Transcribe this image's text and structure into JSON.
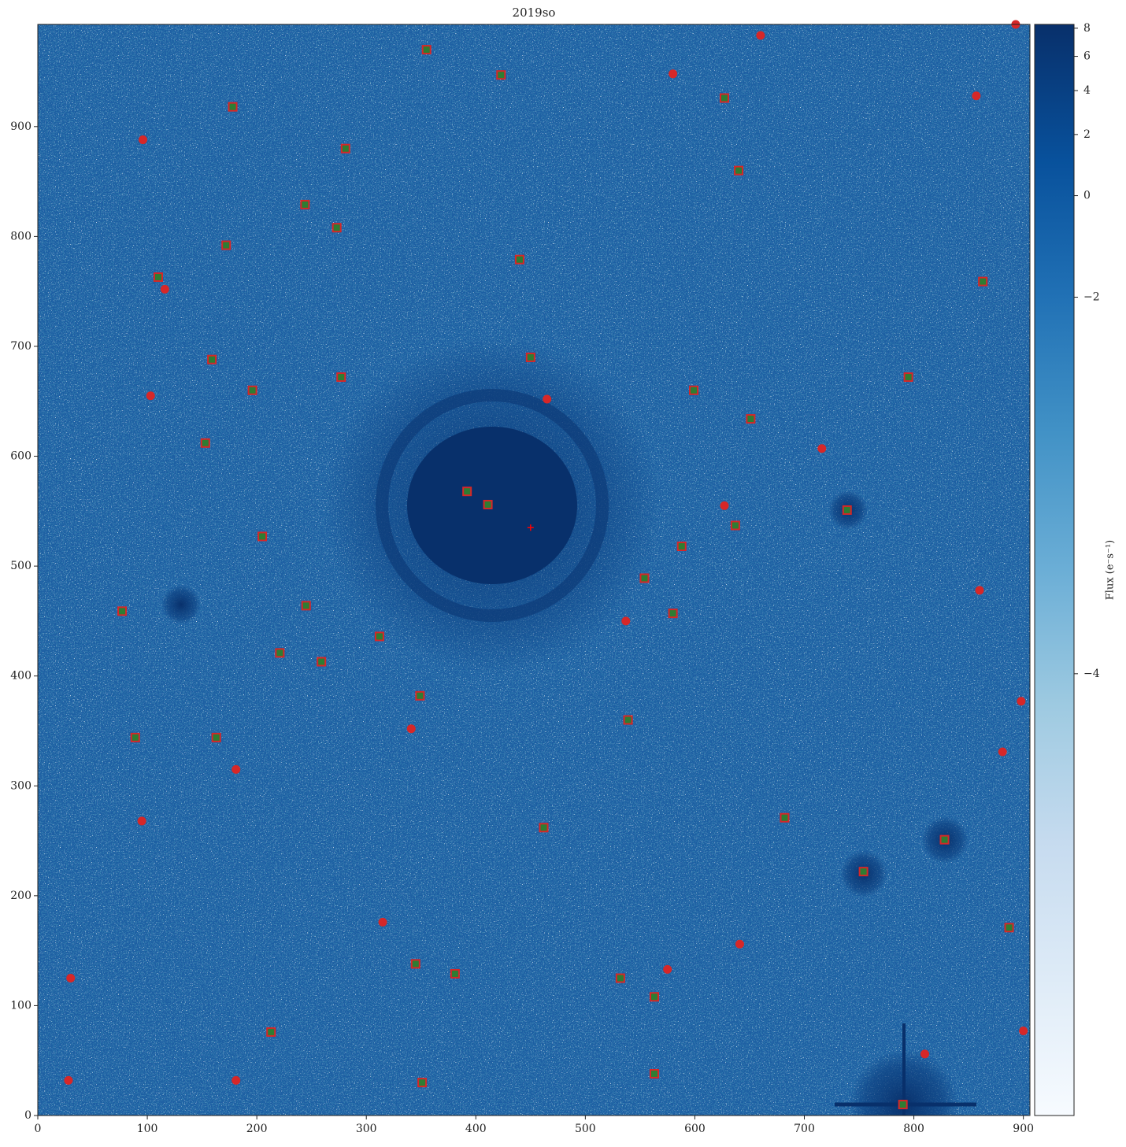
{
  "chart_data": {
    "type": "image",
    "title": "2019so",
    "xlim": [
      0,
      906
    ],
    "ylim": [
      0,
      993
    ],
    "xticks": [
      0,
      100,
      200,
      300,
      400,
      500,
      600,
      700,
      800,
      900
    ],
    "yticks": [
      0,
      100,
      200,
      300,
      400,
      500,
      600,
      700,
      800,
      900
    ],
    "colorbar": {
      "label": "Flux (e⁻s⁻¹)",
      "cmap": [
        "#f7fbff",
        "#deebf7",
        "#c6dbef",
        "#9ecae1",
        "#6baed6",
        "#4292c6",
        "#2171b5",
        "#08519c",
        "#08306b"
      ],
      "scale": "log",
      "log_offset": 4.2,
      "lim": [
        -4.188,
        8.3
      ],
      "ticks": [
        8,
        6,
        4,
        2,
        0,
        {
          "value": -2,
          "label": "−2"
        },
        {
          "value": -4,
          "label": "−4"
        }
      ]
    },
    "series": [
      {
        "color": "#d62728",
        "marker": "circle",
        "x": [
          660,
          580,
          857,
          96,
          116,
          103,
          465,
          716,
          627,
          860,
          537,
          898,
          341,
          881,
          181,
          95,
          315,
          641,
          575,
          30,
          900,
          810,
          28,
          181,
          893
        ],
        "y": [
          983,
          948,
          928,
          888,
          752,
          655,
          652,
          607,
          555,
          478,
          450,
          377,
          352,
          331,
          315,
          268,
          176,
          156,
          133,
          125,
          77,
          56,
          32,
          32,
          993
        ]
      },
      {
        "color": "#2e7d32",
        "marker": "square",
        "x": [
          355,
          423,
          627,
          178,
          281,
          640,
          244,
          273,
          172,
          440,
          110,
          863,
          159,
          450,
          277,
          795,
          196,
          599,
          651,
          153,
          392,
          411,
          739,
          637,
          205,
          588,
          554,
          77,
          580,
          245,
          312,
          221,
          259,
          349,
          539,
          89,
          163,
          462,
          682,
          828,
          754,
          887,
          345,
          381,
          532,
          563,
          213,
          351,
          563,
          790
        ],
        "y": [
          970,
          947,
          926,
          918,
          880,
          860,
          829,
          808,
          792,
          779,
          763,
          759,
          688,
          690,
          672,
          672,
          660,
          660,
          634,
          612,
          568,
          556,
          551,
          537,
          527,
          518,
          489,
          459,
          457,
          464,
          436,
          421,
          413,
          382,
          360,
          344,
          344,
          262,
          271,
          251,
          222,
          171,
          138,
          129,
          125,
          108,
          76,
          30,
          38,
          10
        ]
      },
      {
        "color": "#ff0000",
        "marker": "plus",
        "x": [
          450
        ],
        "y": [
          535
        ]
      }
    ]
  }
}
